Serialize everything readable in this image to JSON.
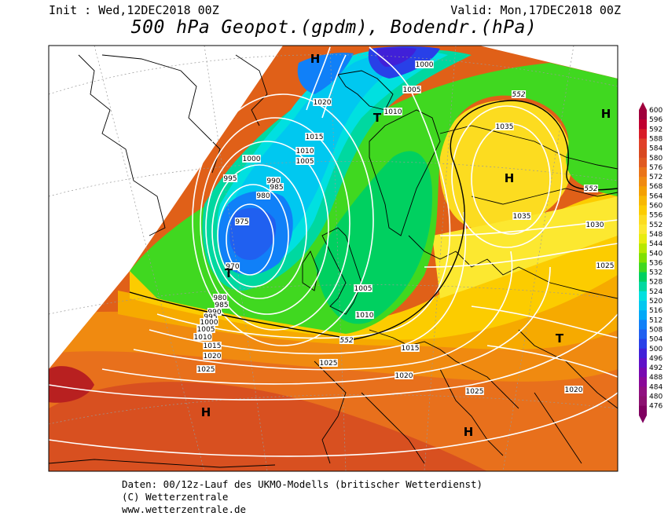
{
  "header": {
    "init": "Init : Wed,12DEC2018 00Z",
    "valid": "Valid: Mon,17DEC2018 00Z",
    "title": "500 hPa Geopot.(gpdm), Bodendr.(hPa)"
  },
  "footer": {
    "line1": "Daten: 00/12z-Lauf des UKMO-Modells (britischer Wetterdienst)",
    "line2": "(C) Wetterzentrale",
    "line3": "www.wetterzentrale.de"
  },
  "colorbar": {
    "levels": [
      "600",
      "596",
      "592",
      "588",
      "584",
      "580",
      "576",
      "572",
      "568",
      "564",
      "560",
      "556",
      "552",
      "548",
      "544",
      "540",
      "536",
      "532",
      "528",
      "524",
      "520",
      "516",
      "512",
      "508",
      "504",
      "500",
      "496",
      "492",
      "488",
      "484",
      "480",
      "476"
    ],
    "colors": [
      "#a0003c",
      "#c00030",
      "#d81c28",
      "#e04028",
      "#d84820",
      "#e05a20",
      "#ea7418",
      "#f08a10",
      "#f4a000",
      "#f8b800",
      "#fccc00",
      "#fcdc20",
      "#fce830",
      "#e8ec10",
      "#b8e800",
      "#80e000",
      "#40d820",
      "#00d060",
      "#00d8a0",
      "#00e0e0",
      "#00c8f0",
      "#00a8f8",
      "#1080f8",
      "#2060f0",
      "#2840e8",
      "#4020d8",
      "#6010c8",
      "#7808b0",
      "#8a0898",
      "#901080",
      "#8c1070",
      "#800060"
    ]
  },
  "map": {
    "contour_labels": [
      {
        "text": "1000",
        "kind": "pressure"
      },
      {
        "text": "1005",
        "kind": "pressure"
      },
      {
        "text": "1010",
        "kind": "pressure"
      },
      {
        "text": "1020",
        "kind": "pressure"
      },
      {
        "text": "1015",
        "kind": "pressure"
      },
      {
        "text": "1010",
        "kind": "pressure"
      },
      {
        "text": "1005",
        "kind": "pressure"
      },
      {
        "text": "1000",
        "kind": "pressure"
      },
      {
        "text": "995",
        "kind": "pressure"
      },
      {
        "text": "990",
        "kind": "pressure"
      },
      {
        "text": "985",
        "kind": "pressure"
      },
      {
        "text": "980",
        "kind": "pressure"
      },
      {
        "text": "975",
        "kind": "pressure"
      },
      {
        "text": "970",
        "kind": "pressure"
      },
      {
        "text": "980",
        "kind": "pressure"
      },
      {
        "text": "985",
        "kind": "pressure"
      },
      {
        "text": "990",
        "kind": "pressure"
      },
      {
        "text": "995",
        "kind": "pressure"
      },
      {
        "text": "1000",
        "kind": "pressure"
      },
      {
        "text": "1005",
        "kind": "pressure"
      },
      {
        "text": "1010",
        "kind": "pressure"
      },
      {
        "text": "1015",
        "kind": "pressure"
      },
      {
        "text": "1020",
        "kind": "pressure"
      },
      {
        "text": "1025",
        "kind": "pressure"
      },
      {
        "text": "1005",
        "kind": "pressure"
      },
      {
        "text": "1010",
        "kind": "pressure"
      },
      {
        "text": "1015",
        "kind": "pressure"
      },
      {
        "text": "1025",
        "kind": "pressure"
      },
      {
        "text": "1020",
        "kind": "pressure"
      },
      {
        "text": "1025",
        "kind": "pressure"
      },
      {
        "text": "1020",
        "kind": "pressure"
      },
      {
        "text": "1035",
        "kind": "pressure"
      },
      {
        "text": "1035",
        "kind": "pressure"
      },
      {
        "text": "1030",
        "kind": "pressure"
      },
      {
        "text": "1025",
        "kind": "pressure"
      },
      {
        "text": "552",
        "kind": "geopotential"
      },
      {
        "text": "552",
        "kind": "geopotential"
      },
      {
        "text": "552",
        "kind": "geopotential"
      }
    ],
    "pressure_centers": [
      {
        "text": "H",
        "type": "high"
      },
      {
        "text": "T",
        "type": "low"
      },
      {
        "text": "T",
        "type": "low"
      },
      {
        "text": "H",
        "type": "high"
      },
      {
        "text": "H",
        "type": "high"
      },
      {
        "text": "T",
        "type": "low"
      },
      {
        "text": "H",
        "type": "high"
      },
      {
        "text": "H",
        "type": "high"
      }
    ]
  }
}
